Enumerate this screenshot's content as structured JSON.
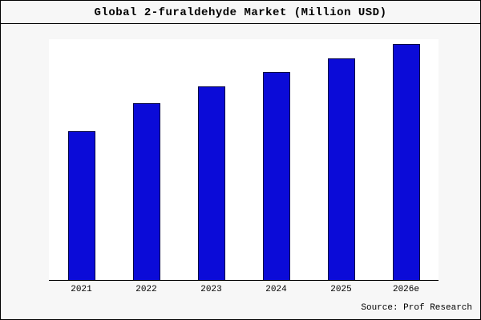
{
  "page": {
    "title": "Global 2-furaldehyde Market (Million USD)",
    "source": "Source: Prof Research"
  },
  "colors": {
    "bar_fill": "#0b0bd8",
    "bar_border": "#000044",
    "axis": "#000000",
    "plot_background": "#ffffff",
    "frame_background": "#f7f7f7"
  },
  "chart_data": {
    "type": "bar",
    "title": "Global 2-furaldehyde Market (Million USD)",
    "categories": [
      "2021",
      "2022",
      "2023",
      "2024",
      "2025",
      "2026e"
    ],
    "values": [
      63,
      75,
      82,
      88,
      94,
      100
    ],
    "xlabel": "",
    "ylabel": "",
    "ylim": [
      0,
      105
    ],
    "grid": false,
    "legend": false,
    "y_axis_tick_labels_shown": false,
    "source": "Source: Prof Research"
  }
}
